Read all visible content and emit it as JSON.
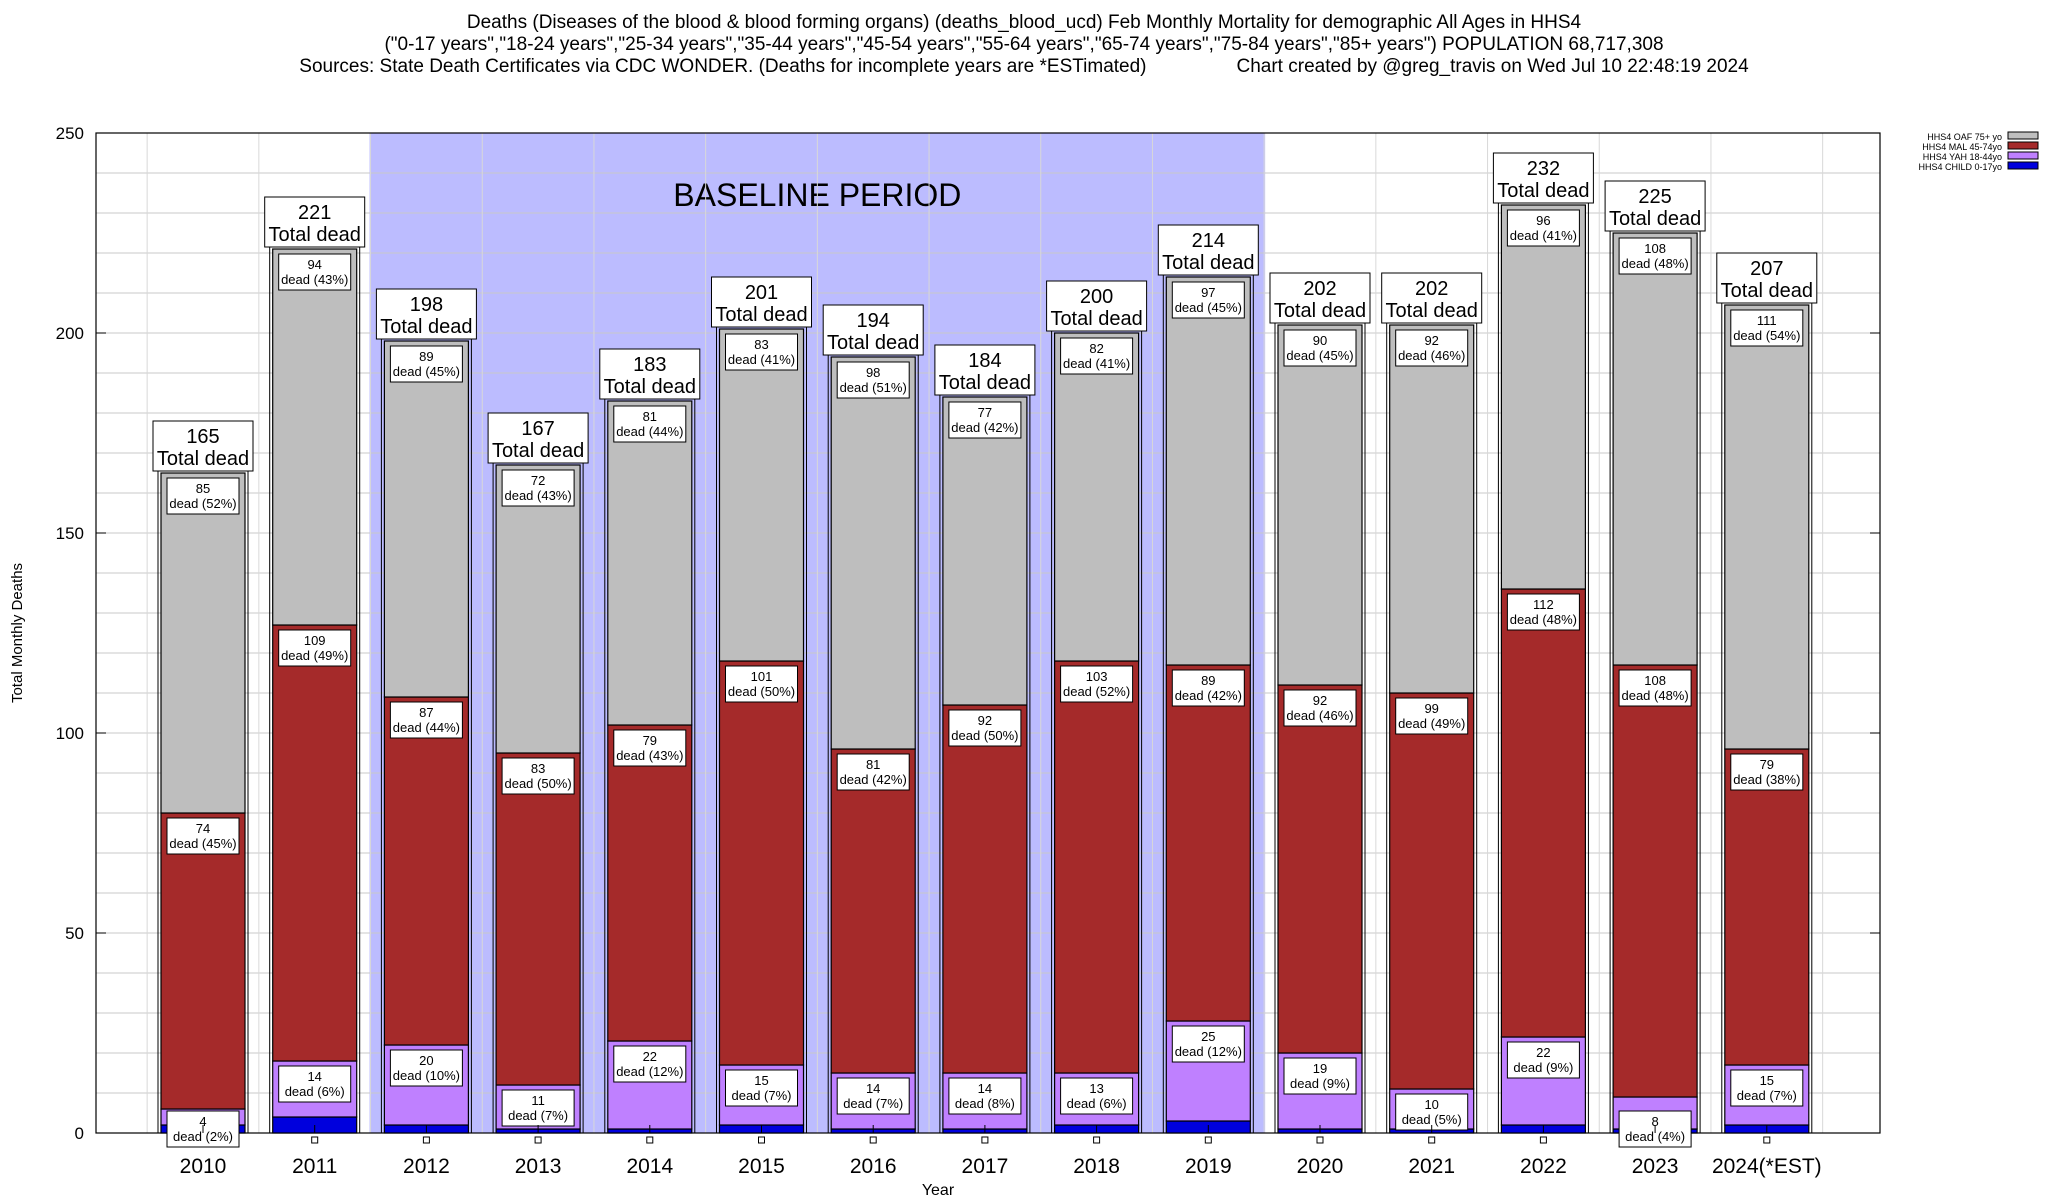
{
  "titles": {
    "line1": "Deaths (Diseases of the blood & blood forming organs) (deaths_blood_ucd) Feb Monthly Mortality for demographic All Ages in HHS4",
    "line2": "(\"0-17 years\",\"18-24 years\",\"25-34 years\",\"35-44 years\",\"45-54 years\",\"55-64 years\",\"65-74 years\",\"75-84 years\",\"85+ years\") POPULATION 68,717,308",
    "line3a": "Sources: State Death Certificates via CDC WONDER. (Deaths for incomplete years are *ESTimated)",
    "line3b": "Chart created by @greg_travis on Wed Jul 10 22:48:19 2024"
  },
  "chart_data": {
    "type": "bar",
    "stacked": true,
    "categories": [
      "2010",
      "2011",
      "2012",
      "2013",
      "2014",
      "2015",
      "2016",
      "2017",
      "2018",
      "2019",
      "2020",
      "2021",
      "2022",
      "2023",
      "2024(*EST)"
    ],
    "series": [
      {
        "name": "HHS4 CHILD 0-17yo",
        "color": "#0000dd",
        "values": [
          2,
          4,
          2,
          1,
          1,
          2,
          1,
          1,
          2,
          3,
          1,
          1,
          2,
          1,
          2
        ]
      },
      {
        "name": "HHS4 YAH 18-44yo",
        "color": "#bf80ff",
        "values": [
          4,
          14,
          20,
          11,
          22,
          15,
          14,
          14,
          13,
          25,
          19,
          10,
          22,
          8,
          15
        ],
        "labels": [
          "4\ndead (2%)",
          "14\ndead (6%)",
          "20\ndead (10%)",
          "11\ndead (7%)",
          "22\ndead (12%)",
          "15\ndead (7%)",
          "14\ndead (7%)",
          "14\ndead (8%)",
          "13\ndead (6%)",
          "25\ndead (12%)",
          "19\ndead (9%)",
          "10\ndead (5%)",
          "22\ndead (9%)",
          "8\ndead (4%)",
          "15\ndead (7%)"
        ]
      },
      {
        "name": "HHS4 MAL 45-74yo",
        "color": "#a52a2a",
        "values": [
          74,
          109,
          87,
          83,
          79,
          101,
          81,
          92,
          103,
          89,
          92,
          99,
          112,
          108,
          79
        ],
        "labels": [
          "74\ndead (45%)",
          "109\ndead (49%)",
          "87\ndead (44%)",
          "83\ndead (50%)",
          "79\ndead (43%)",
          "101\ndead (50%)",
          "81\ndead (42%)",
          "92\ndead (50%)",
          "103\ndead (52%)",
          "89\ndead (42%)",
          "92\ndead (46%)",
          "99\ndead (49%)",
          "112\ndead (48%)",
          "108\ndead (48%)",
          "79\ndead (38%)"
        ]
      },
      {
        "name": "HHS4 OAF 75+ yo",
        "color": "#bebebe",
        "values": [
          85,
          94,
          89,
          72,
          81,
          83,
          98,
          77,
          82,
          97,
          90,
          92,
          96,
          108,
          111
        ],
        "labels": [
          "85\ndead (52%)",
          "94\ndead (43%)",
          "89\ndead (45%)",
          "72\ndead (43%)",
          "81\ndead (44%)",
          "83\ndead (41%)",
          "98\ndead (51%)",
          "77\ndead (42%)",
          "82\ndead (41%)",
          "97\ndead (45%)",
          "90\ndead (45%)",
          "92\ndead (46%)",
          "96\ndead (41%)",
          "108\ndead (48%)",
          "111\ndead (54%)"
        ]
      }
    ],
    "totals": [
      165,
      221,
      198,
      167,
      183,
      201,
      194,
      184,
      200,
      214,
      202,
      202,
      232,
      225,
      207
    ],
    "total_suffix": "Total dead",
    "xlabel": "Year",
    "ylabel": "Total Monthly Deaths",
    "ylim": [
      0,
      250
    ],
    "yticks": [
      0,
      50,
      100,
      150,
      200,
      250
    ],
    "grid": true,
    "legend_position": "top-right",
    "baseline_band": {
      "from": "2012",
      "to": "2019",
      "label": "BASELINE PERIOD",
      "color": "#bcbcff"
    }
  }
}
